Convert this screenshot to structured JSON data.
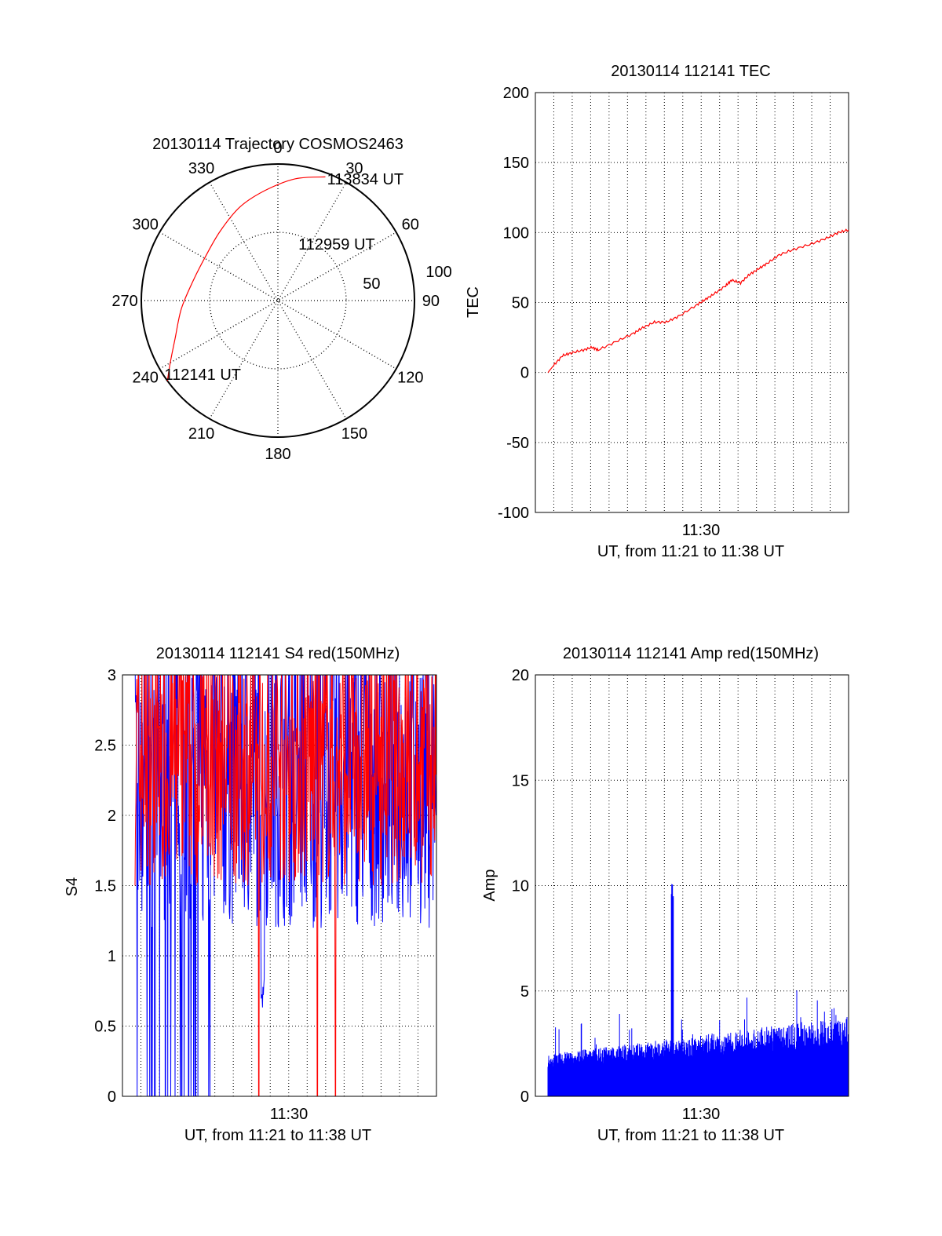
{
  "chart_data": [
    {
      "type": "polar",
      "title": "20130114 Trajectory COSMOS2463",
      "angle_ticks": [
        "0",
        "30",
        "60",
        "90",
        "120",
        "150",
        "180",
        "210",
        "240",
        "270",
        "300",
        "330"
      ],
      "radial_ticks": [
        "50",
        "100"
      ],
      "radial_max": 100,
      "track": [
        {
          "az": 234,
          "r": 100
        },
        {
          "az": 240,
          "r": 91
        },
        {
          "az": 250,
          "r": 80
        },
        {
          "az": 265,
          "r": 71
        },
        {
          "az": 282,
          "r": 64
        },
        {
          "az": 300,
          "r": 62
        },
        {
          "az": 320,
          "r": 66
        },
        {
          "az": 338,
          "r": 74
        },
        {
          "az": 353,
          "r": 81
        },
        {
          "az": 8,
          "r": 90
        },
        {
          "az": 21,
          "r": 97
        }
      ],
      "labels": [
        {
          "text": "112141 UT",
          "az": 237,
          "r": 99
        },
        {
          "text": "112959 UT",
          "az": 20,
          "r": 44
        },
        {
          "text": "113834 UT",
          "az": 22,
          "r": 96
        }
      ],
      "colors": {
        "track": "#ff0000",
        "frame": "#000000"
      }
    },
    {
      "type": "line",
      "title": "20130114 112141 TEC",
      "xlabel": "UT, from 11:21 to 11:38 UT",
      "ylabel": "TEC",
      "x_tick_label": "11:30",
      "x_range": [
        "11:21:41",
        "11:38:34"
      ],
      "ylim": [
        -100,
        200
      ],
      "y_ticks": [
        -100,
        -50,
        0,
        50,
        100,
        150,
        200
      ],
      "series": [
        {
          "color": "#ff0000",
          "points": [
            [
              "11:21:41",
              0
            ],
            [
              "11:22:00",
              5
            ],
            [
              "11:22:30",
              12
            ],
            [
              "11:23:00",
              14
            ],
            [
              "11:23:40",
              16
            ],
            [
              "11:24:10",
              18
            ],
            [
              "11:24:30",
              16
            ],
            [
              "11:25:30",
              22
            ],
            [
              "11:26:30",
              28
            ],
            [
              "11:27:00",
              32
            ],
            [
              "11:27:40",
              36
            ],
            [
              "11:28:20",
              36
            ],
            [
              "11:29:00",
              40
            ],
            [
              "11:30:00",
              48
            ],
            [
              "11:30:30",
              52
            ],
            [
              "11:31:00",
              56
            ],
            [
              "11:31:40",
              62
            ],
            [
              "11:32:00",
              66
            ],
            [
              "11:32:30",
              64
            ],
            [
              "11:33:00",
              70
            ],
            [
              "11:33:30",
              74
            ],
            [
              "11:34:00",
              78
            ],
            [
              "11:34:40",
              84
            ],
            [
              "11:35:30",
              88
            ],
            [
              "11:36:30",
              92
            ],
            [
              "11:37:20",
              96
            ],
            [
              "11:38:00",
              100
            ],
            [
              "11:38:34",
              102
            ]
          ]
        }
      ]
    },
    {
      "type": "line",
      "title": "20130114 112141 S4 red(150MHz)",
      "xlabel": "UT, from 11:21 to 11:38 UT",
      "ylabel": "S4",
      "x_tick_label": "11:30",
      "x_range": [
        "11:21:41",
        "11:38:34"
      ],
      "ylim": [
        0,
        3
      ],
      "y_ticks": [
        "0",
        "0.5",
        "1",
        "1.5",
        "2",
        "2.5",
        "3"
      ],
      "series": [
        {
          "color": "#ff0000",
          "note_range": [
            1.5,
            3.0
          ],
          "drops_to_zero_at": [
            "11:28:37",
            "11:31:54",
            "11:32:55"
          ]
        },
        {
          "color": "#0000ff",
          "note_range": [
            1.2,
            3.0
          ],
          "dip_min": 0.62,
          "dip_at": "11:28:50",
          "drops_to_zero_before": "11:26:00"
        }
      ]
    },
    {
      "type": "bar",
      "title": "20130114 112141 Amp red(150MHz)",
      "xlabel": "UT, from 11:21 to 11:38 UT",
      "ylabel": "Amp",
      "x_tick_label": "11:30",
      "x_range": [
        "11:21:41",
        "11:38:34"
      ],
      "ylim": [
        0,
        20
      ],
      "y_ticks": [
        0,
        5,
        10,
        15,
        20
      ],
      "series": [
        {
          "color": "#0000ff",
          "baseline_start": 1.4,
          "baseline_end": 2.3,
          "spike": {
            "at": "11:28:40",
            "value": 10
          }
        }
      ]
    }
  ]
}
